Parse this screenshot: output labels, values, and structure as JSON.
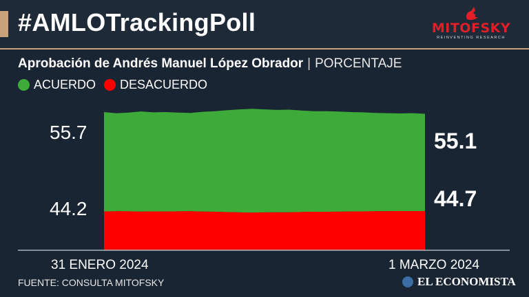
{
  "header": {
    "hashtag": "#AMLOTrackingPoll",
    "logo": {
      "name": "MITOFSKY",
      "tagline": "REINVENTING RESEARCH"
    }
  },
  "subtitle": {
    "title": "Aprobación de Andrés Manuel López Obrador",
    "unit": "PORCENTAJE"
  },
  "colors": {
    "acuerdo": "#3daa39",
    "desacuerdo": "#ff0000",
    "background": "#1a2533",
    "accent": "#c9a27a"
  },
  "chart_data": {
    "type": "area",
    "legend": [
      {
        "label": "ACUERDO",
        "color": "#3daa39"
      },
      {
        "label": "DESACUERDO",
        "color": "#ff0000"
      }
    ],
    "x_start_label": "31 ENERO 2024",
    "x_end_label": "1 MARZO 2024",
    "start_labels": {
      "acuerdo": "55.7",
      "desacuerdo": "44.2"
    },
    "end_labels": {
      "acuerdo": "55.1",
      "desacuerdo": "44.7"
    },
    "series": [
      {
        "name": "ACUERDO",
        "values": [
          55.7,
          55.3,
          55.5,
          55.9,
          55.6,
          55.7,
          55.5,
          55.4,
          55.8,
          56.0,
          56.4,
          56.7,
          56.9,
          56.7,
          56.5,
          56.6,
          56.3,
          56.0,
          56.0,
          55.9,
          55.7,
          55.6,
          55.4,
          55.3,
          55.2,
          55.3,
          55.1
        ]
      },
      {
        "name": "DESACUERDO",
        "values": [
          44.2,
          44.5,
          44.4,
          44.1,
          44.3,
          44.2,
          44.4,
          44.5,
          44.1,
          43.9,
          43.5,
          43.2,
          43.0,
          43.2,
          43.4,
          43.3,
          43.6,
          43.9,
          43.9,
          44.0,
          44.2,
          44.3,
          44.5,
          44.6,
          44.7,
          44.6,
          44.7
        ]
      }
    ]
  },
  "footer": {
    "source": "FUENTE: CONSULTA MITOFSKY",
    "brand": "EL ECONOMISTA"
  }
}
